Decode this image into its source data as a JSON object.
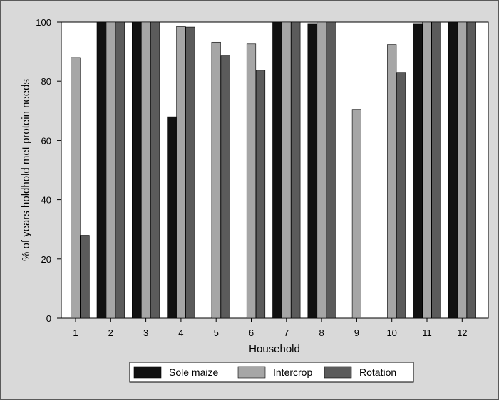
{
  "chart_data": {
    "type": "bar",
    "xlabel": "Household",
    "ylabel": "% of years holdhold met protein needs",
    "categories": [
      "1",
      "2",
      "3",
      "4",
      "5",
      "6",
      "7",
      "8",
      "9",
      "10",
      "11",
      "12"
    ],
    "ylim": [
      0,
      100
    ],
    "yticks": [
      0,
      20,
      40,
      60,
      80,
      100
    ],
    "grid": false,
    "legend_position": "bottom",
    "series": [
      {
        "name": "Sole maize",
        "color": "#111111",
        "values": [
          0,
          100,
          100,
          68,
          0,
          0,
          100,
          99.3,
          0,
          0,
          99.3,
          100
        ]
      },
      {
        "name": "Intercrop",
        "color": "#a6a6a6",
        "values": [
          88,
          100,
          100,
          98.5,
          93.2,
          92.6,
          100,
          100,
          70.5,
          92.4,
          100,
          100
        ]
      },
      {
        "name": "Rotation",
        "color": "#5b5b5b",
        "values": [
          28,
          100,
          100,
          98.3,
          88.8,
          83.7,
          100,
          100,
          0,
          83,
          100,
          100
        ]
      }
    ]
  }
}
